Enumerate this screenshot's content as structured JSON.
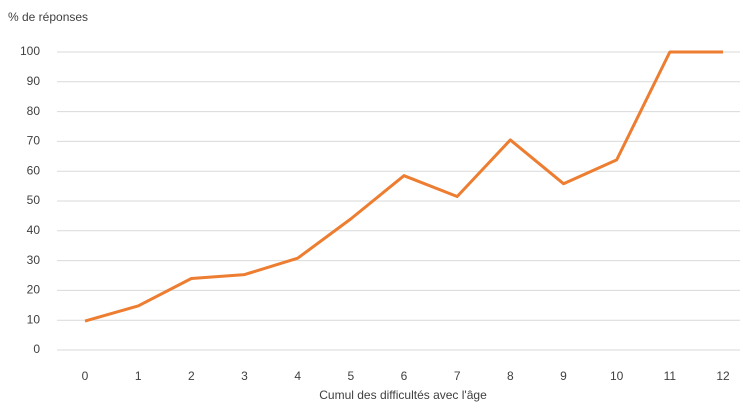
{
  "chart_data": {
    "type": "line",
    "ylabel": "% de réponses",
    "xlabel": "Cumul des difficultés avec l'âge",
    "categories": [
      "0",
      "1",
      "2",
      "3",
      "4",
      "5",
      "6",
      "7",
      "8",
      "9",
      "10",
      "11",
      "12"
    ],
    "series": [
      {
        "color": "#ed7d31",
        "values": [
          9.7,
          14.8,
          24,
          25.3,
          30.8,
          44,
          58.5,
          51.5,
          70.5,
          55.8,
          63.8,
          100,
          100
        ]
      }
    ],
    "ylim": [
      0,
      100
    ],
    "yticks": [
      0,
      10,
      20,
      30,
      40,
      50,
      60,
      70,
      80,
      90,
      100
    ],
    "grid": true
  }
}
